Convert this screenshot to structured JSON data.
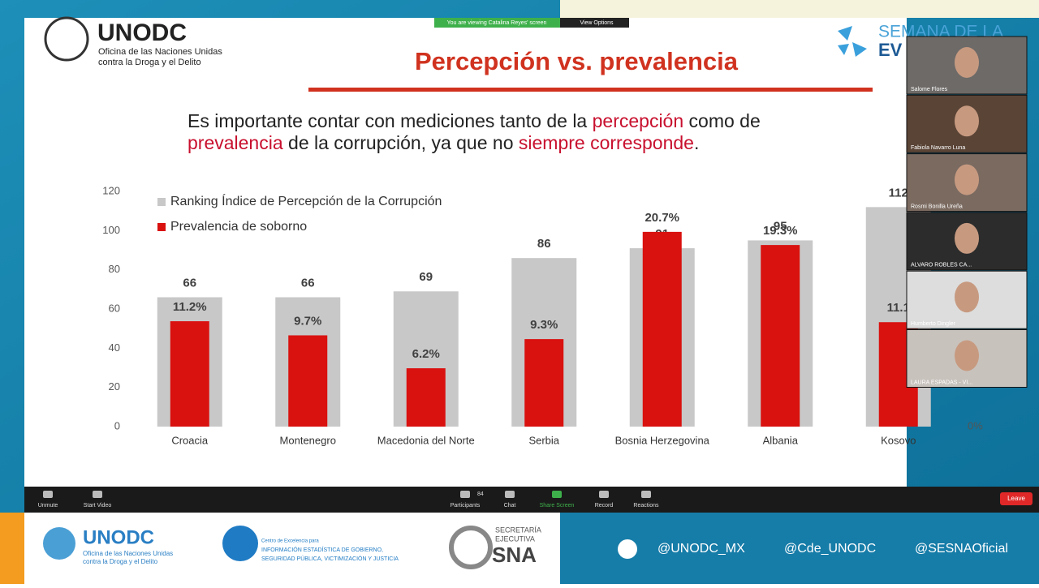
{
  "banner": {
    "viewing": "You are viewing Catalina Reyes' screen",
    "options": "View Options"
  },
  "slide": {
    "logo": "UNODC",
    "org_line1": "Oficina de las Naciones Unidas",
    "org_line2": "contra la Droga y el Delito",
    "event": "SEMANA DE LA",
    "event2": "EV",
    "title": "Percepción vs. prevalencia",
    "paragraph": [
      [
        {
          "text": "Es importante contar con mediciones tanto de la ",
          "em": false
        },
        {
          "text": "percepción",
          "em": true
        },
        {
          "text": " como de",
          "em": false
        }
      ],
      [
        {
          "text": "prevalencia",
          "em": true
        },
        {
          "text": " de la corrupción, ya que no ",
          "em": false
        },
        {
          "text": "siempre corresponde",
          "em": true
        },
        {
          "text": ".",
          "em": false
        }
      ]
    ]
  },
  "chart_data": {
    "type": "bar",
    "categories": [
      "Croacia",
      "Montenegro",
      "Macedonia del Norte",
      "Serbia",
      "Bosnia Herzegovina",
      "Albania",
      "Kosovo"
    ],
    "series": [
      {
        "name": "Ranking Índice de Percepción de la Corrupción",
        "color": "#c8c8c8",
        "values": [
          66,
          66,
          69,
          86,
          91,
          95,
          112
        ]
      },
      {
        "name": "Prevalencia de soborno",
        "color": "#d9110f",
        "axis": "y2",
        "values": [
          11.2,
          9.7,
          6.2,
          9.3,
          20.7,
          19.3,
          11.1
        ],
        "value_labels": [
          "11.2%",
          "9.7%",
          "6.2%",
          "9.3%",
          "20.7%",
          "19.3%",
          "11.1"
        ]
      }
    ],
    "ylim": [
      0,
      120
    ],
    "yticks": [
      0,
      20,
      40,
      60,
      80,
      100,
      120
    ],
    "y2lim": [
      0,
      25
    ],
    "y2ticks": [
      {
        "value": 0,
        "label": "0%"
      }
    ],
    "grid": false,
    "legend": "top-left"
  },
  "participants": [
    "Salome Flores",
    "Fabiola Navarro Luna",
    "Rosmi Bonilla Ureña",
    "ALVARO ROBLES CA...",
    "Humberto Dingler",
    "LAURA ESPADAS - VI..."
  ],
  "toolbar": {
    "unmute": "Unmute",
    "video": "Start Video",
    "participants": "Participants",
    "count": "84",
    "chat": "Chat",
    "share": "Share Screen",
    "record": "Record",
    "reactions": "Reactions",
    "leave": "Leave"
  },
  "footer": {
    "unodc": "UNODC",
    "unodc_sub1": "Oficina de las Naciones Unidas",
    "unodc_sub2": "contra la Droga y el Delito",
    "cde1": "Centro de Excelencia para",
    "cde2": "INFORMACIÓN ESTADÍSTICA DE GOBIERNO,",
    "cde3": "SEGURIDAD PÚBLICA, VICTIMIZACIÓN Y JUSTICIA",
    "sna1": "SECRETARÍA",
    "sna2": "EJECUTIVA",
    "sna3": "SNA",
    "handles": [
      "@UNODC_MX",
      "@Cde_UNODC",
      "@SESNAOficial"
    ]
  }
}
